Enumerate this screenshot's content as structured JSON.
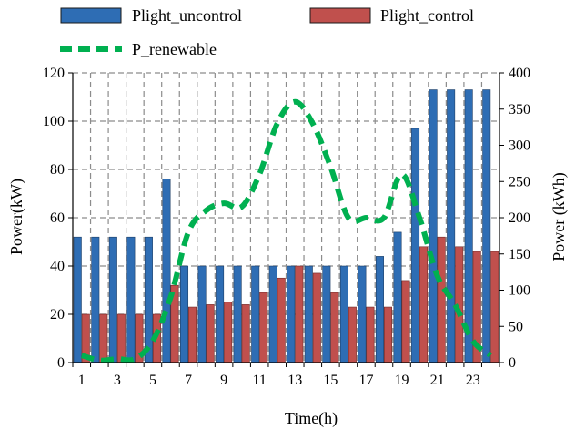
{
  "chart_data": {
    "type": "bar",
    "xlabel": "Time(h)",
    "ylabel_left": "Power(kW)",
    "ylabel_right": "Power (kWh)",
    "ylim_left": [
      0,
      120
    ],
    "ylim_right": [
      0,
      400
    ],
    "left_ticks": [
      0,
      20,
      40,
      60,
      80,
      100,
      120
    ],
    "right_ticks": [
      0,
      50,
      100,
      150,
      200,
      250,
      300,
      350,
      400
    ],
    "x_ticks": [
      1,
      3,
      5,
      7,
      9,
      11,
      13,
      15,
      17,
      19,
      21,
      23
    ],
    "categories": [
      1,
      2,
      3,
      4,
      5,
      6,
      7,
      8,
      9,
      10,
      11,
      12,
      13,
      14,
      15,
      16,
      17,
      18,
      19,
      20,
      21,
      22,
      23,
      24
    ],
    "grid": true,
    "legend_position": "top",
    "series": [
      {
        "name": "Plight_uncontrol",
        "kind": "bar",
        "axis": "left",
        "color": "#2e6db4",
        "values": [
          52,
          52,
          52,
          52,
          52,
          76,
          40,
          40,
          40,
          40,
          40,
          40,
          40,
          40,
          40,
          40,
          40,
          44,
          54,
          97,
          113,
          113,
          113,
          113
        ]
      },
      {
        "name": "Plight_control",
        "kind": "bar",
        "axis": "left",
        "color": "#c0504d",
        "values": [
          20,
          20,
          20,
          20,
          20,
          32,
          23,
          24,
          25,
          24,
          29,
          35,
          40,
          37,
          29,
          23,
          23,
          23,
          34,
          48,
          52,
          48,
          46,
          46
        ]
      },
      {
        "name": "P_renewable",
        "kind": "line",
        "dashed": true,
        "axis": "right",
        "color": "#00b050",
        "values": [
          10,
          3,
          5,
          5,
          30,
          90,
          180,
          210,
          220,
          215,
          260,
          330,
          360,
          330,
          270,
          200,
          200,
          200,
          260,
          200,
          120,
          80,
          30,
          10
        ]
      }
    ]
  }
}
